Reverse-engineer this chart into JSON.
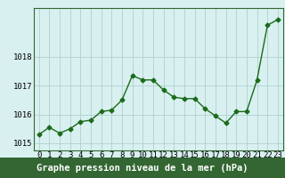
{
  "x": [
    0,
    1,
    2,
    3,
    4,
    5,
    6,
    7,
    8,
    9,
    10,
    11,
    12,
    13,
    14,
    15,
    16,
    17,
    18,
    19,
    20,
    21,
    22,
    23
  ],
  "y": [
    1015.3,
    1015.55,
    1015.35,
    1015.5,
    1015.75,
    1015.8,
    1016.1,
    1016.15,
    1016.5,
    1017.35,
    1017.2,
    1017.2,
    1016.85,
    1016.6,
    1016.55,
    1016.55,
    1016.2,
    1015.95,
    1015.7,
    1016.1,
    1016.1,
    1017.2,
    1019.1,
    1019.3
  ],
  "line_color": "#1a6b1a",
  "marker": "D",
  "marker_size": 2.5,
  "bg_color": "#d9f0f0",
  "grid_color": "#b0d0d0",
  "xlabel": "Graphe pression niveau de la mer (hPa)",
  "xlabel_fontsize": 7.5,
  "yticks": [
    1015,
    1016,
    1017,
    1018
  ],
  "ylim": [
    1014.75,
    1019.7
  ],
  "xlim": [
    -0.5,
    23.5
  ],
  "tick_fontsize": 6.5,
  "border_color": "#336633",
  "xlabel_bg": "#336633",
  "xlabel_fg": "#ffffff"
}
